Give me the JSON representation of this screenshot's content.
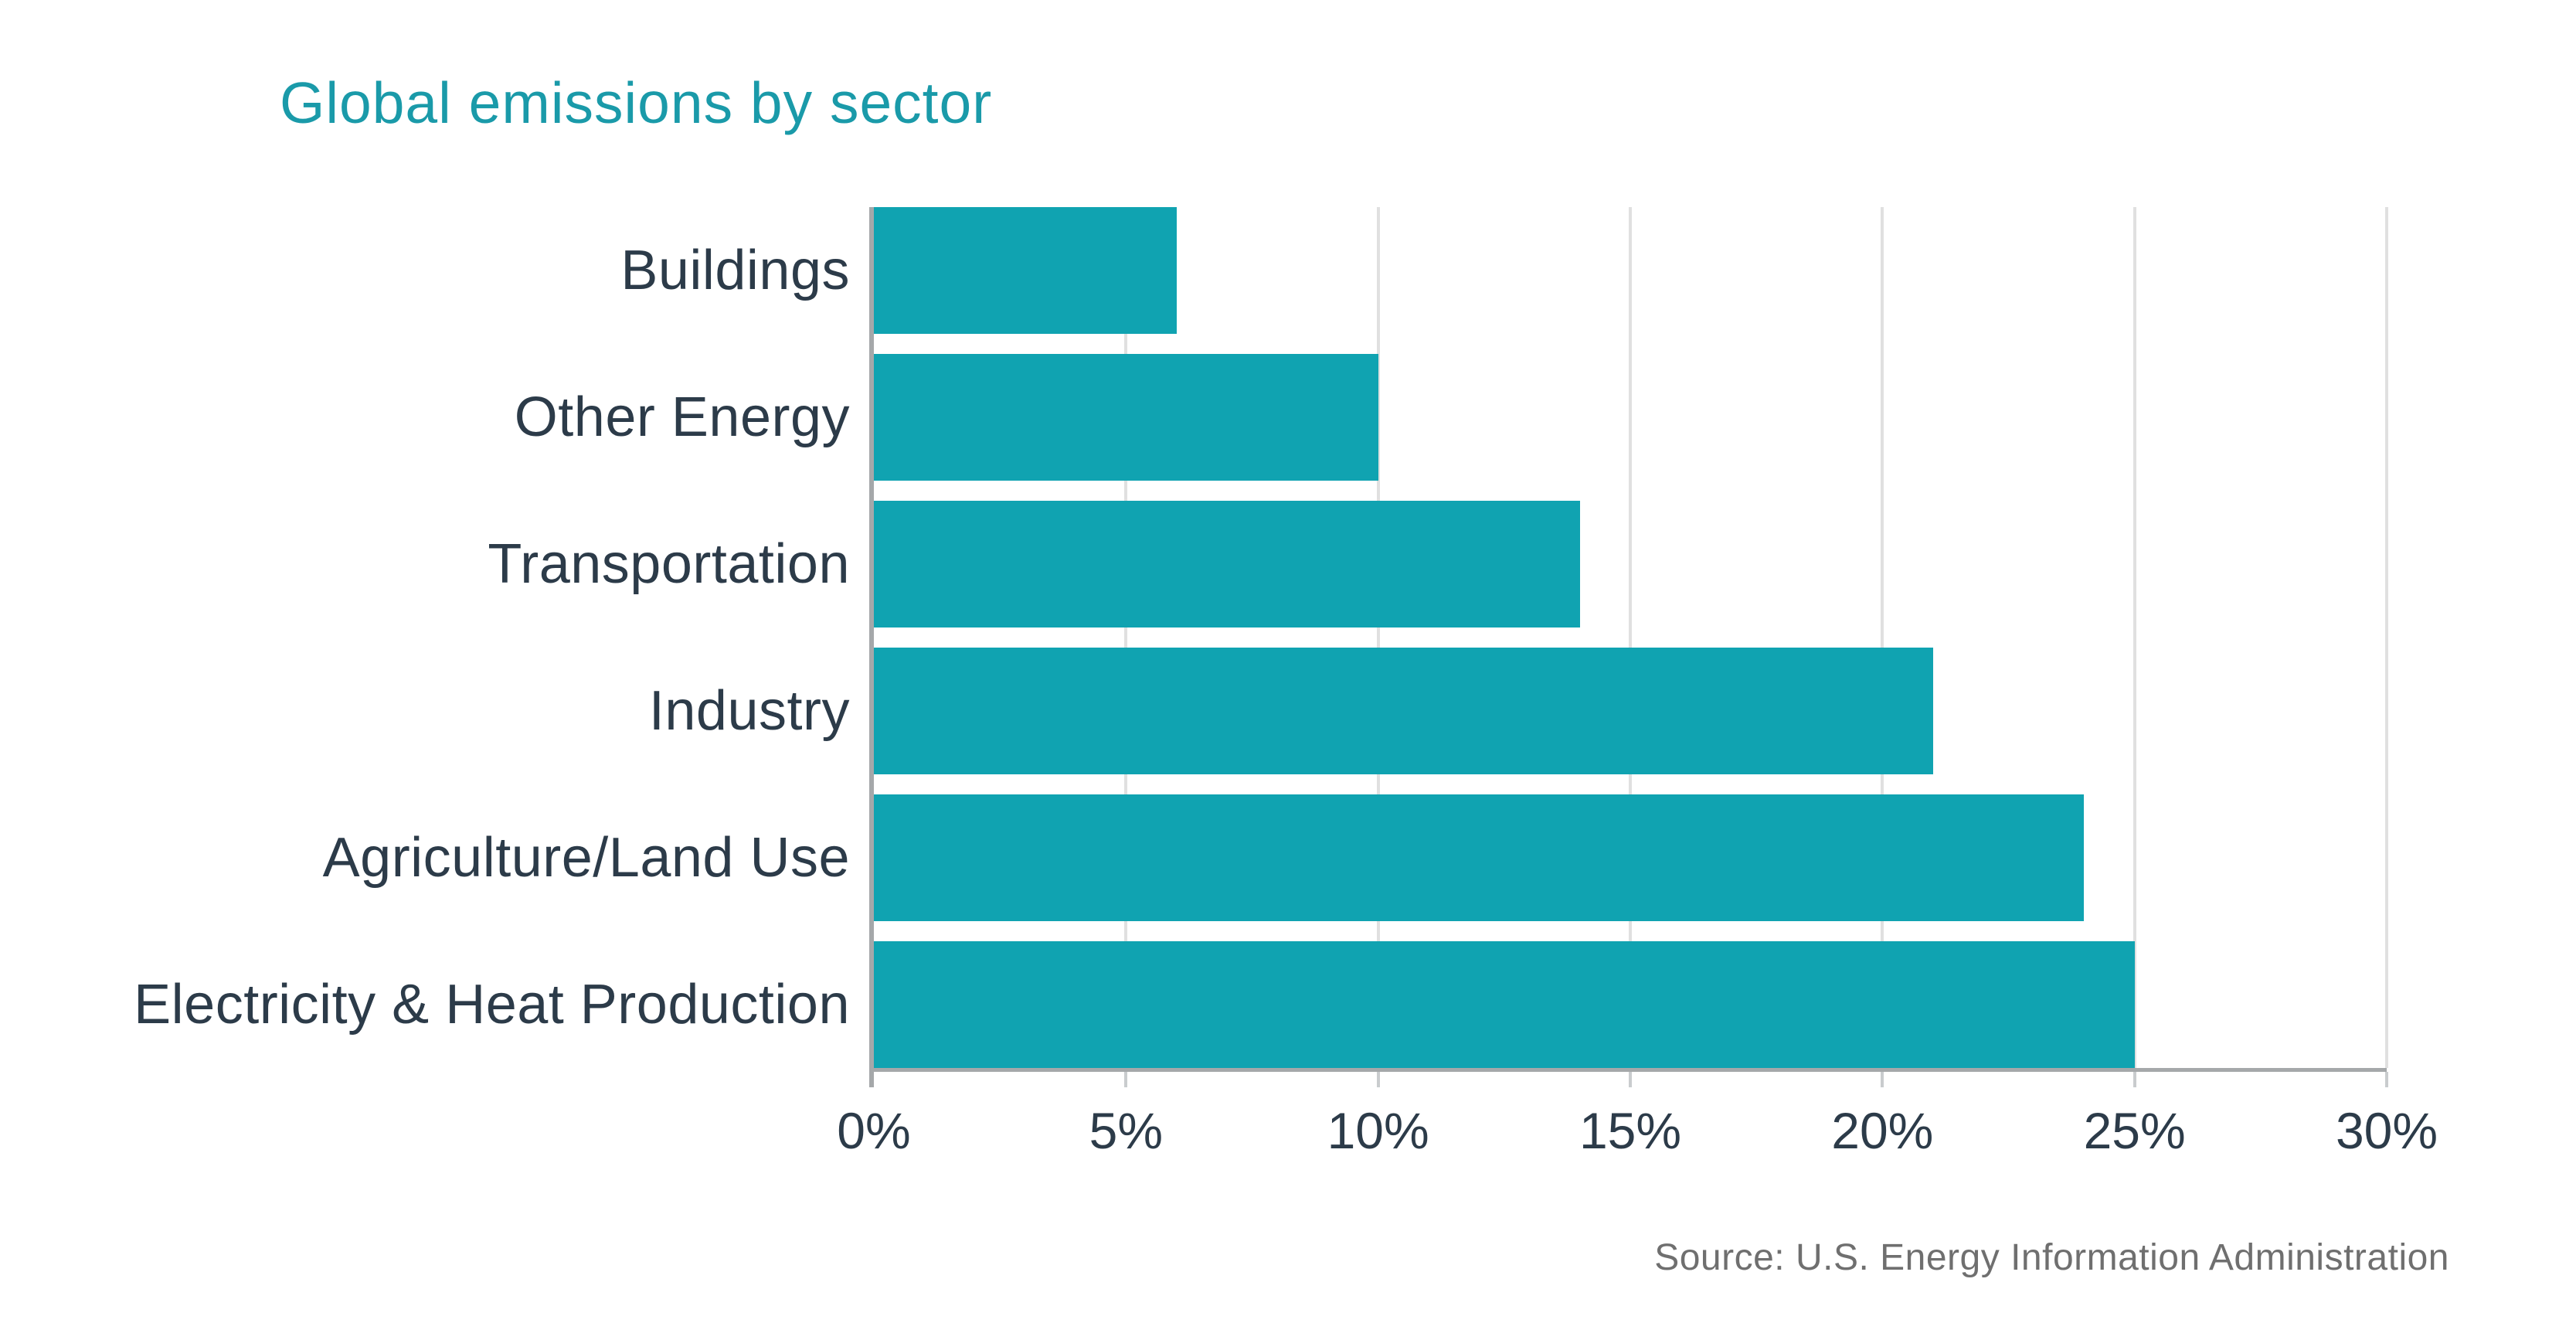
{
  "header": {
    "title": "Global emissions by sector"
  },
  "footer": {
    "source": "Source: U.S. Energy Information Administration"
  },
  "colors": {
    "background": "#FFFFFF",
    "title": "#1A9AA9",
    "bar": "#10A3B1",
    "category_label": "#2C3B49",
    "tick_label": "#2C3B49",
    "gridline": "#E0E0E0",
    "axis_line": "#A5A8AA",
    "tick_mark": "#C9CCCE",
    "source_text": "#6F6F6F"
  },
  "chart_data": {
    "type": "bar",
    "orientation": "horizontal",
    "title": "Global emissions by sector",
    "categories": [
      "Buildings",
      "Other Energy",
      "Transportation",
      "Industry",
      "Agriculture/Land Use",
      "Electricity & Heat Production"
    ],
    "values": [
      6,
      10,
      14,
      21,
      24,
      25
    ],
    "unit": "percent",
    "xlabel": "",
    "ylabel": "",
    "xlim": [
      0,
      30
    ],
    "xticks": [
      {
        "value": 0,
        "label": "0%"
      },
      {
        "value": 5,
        "label": "5%"
      },
      {
        "value": 10,
        "label": "10%"
      },
      {
        "value": 15,
        "label": "15%"
      },
      {
        "value": 20,
        "label": "20%"
      },
      {
        "value": 25,
        "label": "25%"
      },
      {
        "value": 30,
        "label": "30%"
      }
    ],
    "grid": "vertical",
    "legend": false,
    "source": "Source: U.S. Energy Information Administration"
  }
}
